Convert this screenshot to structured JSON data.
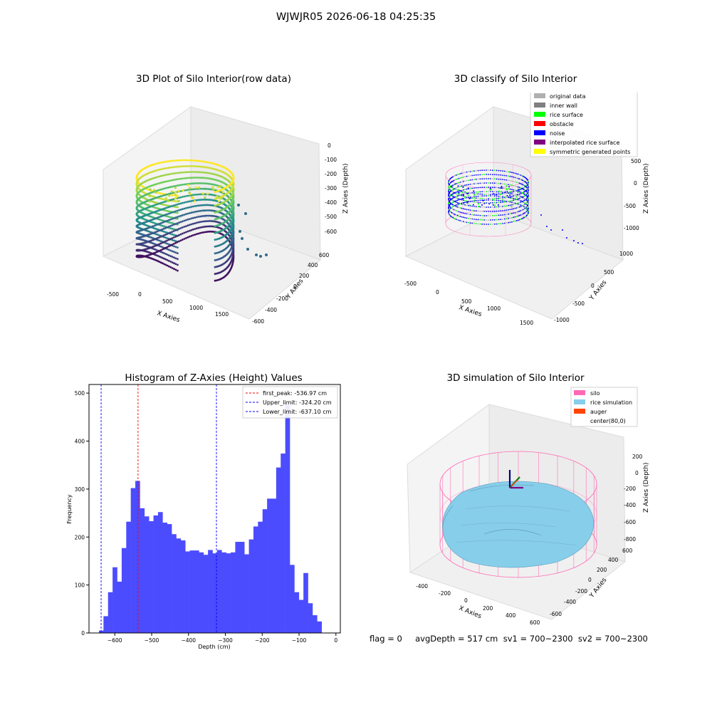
{
  "figure_title": "WJWJR05 2026-06-18 04:25:35",
  "footer_text": "flag = 0     avgDepth = 517 cm  sv1 = 700~2300  sv2 = 700~2300",
  "colors": {
    "hist_bar": "#4c4cff",
    "first_peak_line": "#ff0000",
    "limit_line": "#0000ff",
    "silo_wire": "#ff69b4",
    "rice_surface": "#87ceeb",
    "auger": "#ff4500",
    "legend_gray": "#b0b0b0",
    "legend_inner": "#808080",
    "legend_rice": "#00ff00",
    "legend_obstacle": "#ff0000",
    "legend_noise": "#0000ff",
    "legend_interp": "#800080",
    "legend_sym": "#ffff00"
  },
  "chart_data": [
    {
      "type": "scatter",
      "projection": "3d",
      "title": "3D Plot of Silo Interior(row data)",
      "xlabel": "X Axies",
      "ylabel": "Y Axies",
      "zlabel": "Z Axies (Depth)",
      "x_ticks": [
        "-500",
        "0",
        "500",
        "1000",
        "1500"
      ],
      "y_ticks": [
        "-600",
        "-400",
        "-200",
        "0",
        "200",
        "400",
        "600"
      ],
      "z_ticks": [
        "-600",
        "-500",
        "-400",
        "-300",
        "-200",
        "-100",
        "0"
      ],
      "colormap": "viridis"
    },
    {
      "type": "scatter",
      "projection": "3d",
      "title": "3D classify of Silo Interior",
      "xlabel": "X Axies",
      "ylabel": "Y Axies",
      "zlabel": "Z Axies (Depth)",
      "x_ticks": [
        "-500",
        "0",
        "500",
        "1000",
        "1500"
      ],
      "y_ticks": [
        "-1000",
        "-500",
        "0",
        "500",
        "1000"
      ],
      "z_ticks": [
        "-1000",
        "-500",
        "0",
        "500"
      ],
      "legend": [
        {
          "label": "original data",
          "color": "#b0b0b0"
        },
        {
          "label": "inner wall",
          "color": "#808080"
        },
        {
          "label": "rice surface",
          "color": "#00ff00"
        },
        {
          "label": "obstacle",
          "color": "#ff0000"
        },
        {
          "label": "noise",
          "color": "#0000ff"
        },
        {
          "label": "interpolated rice surface",
          "color": "#800080"
        },
        {
          "label": "symmetric generated points",
          "color": "#ffff00"
        }
      ],
      "legend_position": "top-right"
    },
    {
      "type": "bar",
      "title": "Histogram of Z-Axies (Height) Values",
      "xlabel": "Depth (cm)",
      "ylabel": "Frequency",
      "xlim": [
        -670,
        12
      ],
      "ylim": [
        0,
        518
      ],
      "x_ticks": [
        -600,
        -500,
        -400,
        -300,
        -200,
        -100,
        0
      ],
      "y_ticks": [
        0,
        100,
        200,
        300,
        400,
        500
      ],
      "bin_width": 12.33,
      "bin_start": -643,
      "values": [
        5,
        35,
        85,
        137,
        107,
        177,
        232,
        302,
        317,
        260,
        243,
        233,
        245,
        252,
        230,
        227,
        206,
        197,
        193,
        170,
        172,
        172,
        168,
        163,
        173,
        166,
        173,
        168,
        166,
        168,
        190,
        190,
        164,
        195,
        222,
        232,
        258,
        280,
        280,
        345,
        374,
        476,
        142,
        85,
        69,
        125,
        62,
        37,
        24
      ],
      "lines": [
        {
          "label": "first_peak: -536.97 cm",
          "x": -536.97,
          "color": "#ff0000"
        },
        {
          "label": "Upper_limit: -324.20 cm",
          "x": -324.2,
          "color": "#0000ff"
        },
        {
          "label": "Lower_limit: -637.10 cm",
          "x": -637.1,
          "color": "#0000ff"
        }
      ],
      "legend_position": "top-right"
    },
    {
      "type": "surface",
      "projection": "3d",
      "title": "3D simulation of Silo Interior",
      "xlabel": "X Axies",
      "ylabel": "Y Axies",
      "zlabel": "Z Axies (Depth)",
      "x_ticks": [
        "-400",
        "-200",
        "0",
        "200",
        "400",
        "600"
      ],
      "y_ticks": [
        "-600",
        "-400",
        "-200",
        "0",
        "200",
        "400",
        "600"
      ],
      "z_ticks": [
        "-800",
        "-600",
        "-400",
        "-200",
        "0",
        "200"
      ],
      "legend": [
        {
          "label": "silo",
          "color": "#ff69b4"
        },
        {
          "label": "rice simulation",
          "color": "#87ceeb"
        },
        {
          "label": "auger",
          "color": "#ff4500"
        },
        {
          "label": "center(80,0)",
          "color": ""
        }
      ],
      "legend_position": "top-right"
    }
  ]
}
